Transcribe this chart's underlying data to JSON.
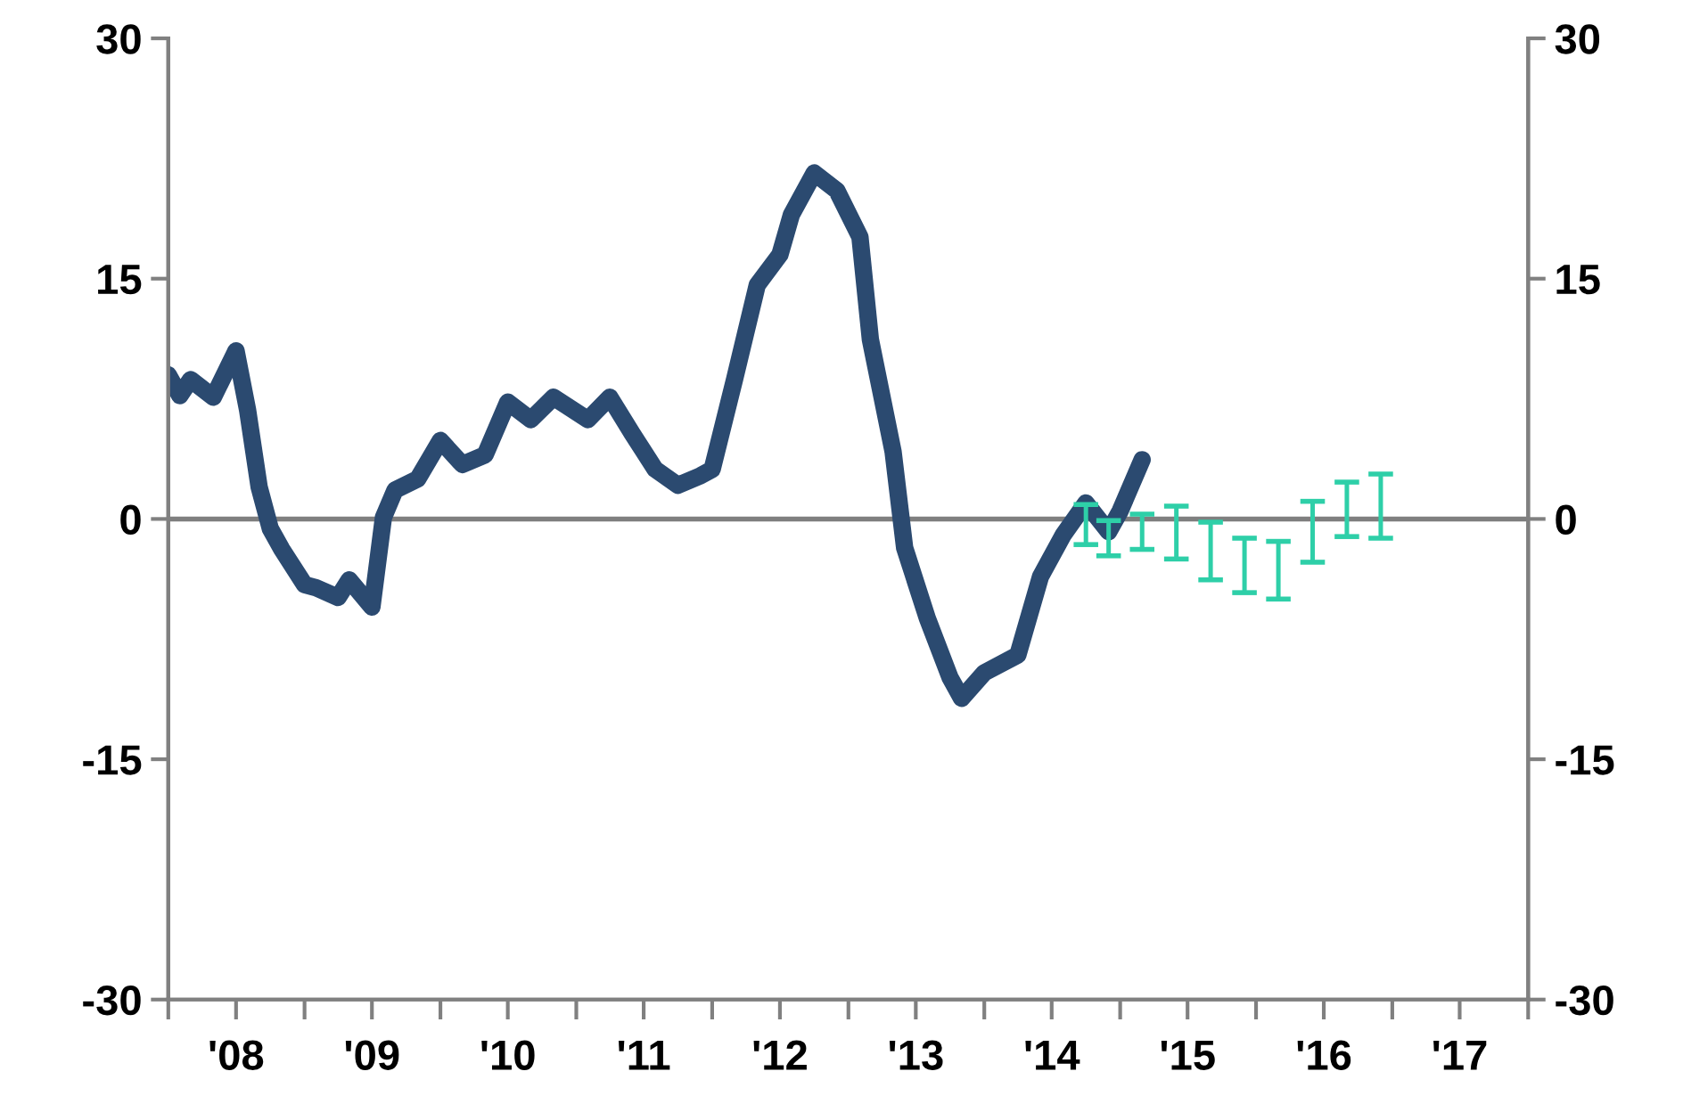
{
  "chart_data": {
    "type": "line",
    "xlim": [
      "2008-01",
      "2018-01"
    ],
    "xticks": [
      {
        "value": "2008-01",
        "label": null
      },
      {
        "value": "2008-07",
        "label": "'08"
      },
      {
        "value": "2009-01",
        "label": null
      },
      {
        "value": "2009-07",
        "label": "'09"
      },
      {
        "value": "2010-01",
        "label": null
      },
      {
        "value": "2010-07",
        "label": "'10"
      },
      {
        "value": "2011-01",
        "label": null
      },
      {
        "value": "2011-07",
        "label": "'11"
      },
      {
        "value": "2012-01",
        "label": null
      },
      {
        "value": "2012-07",
        "label": "'12"
      },
      {
        "value": "2013-01",
        "label": null
      },
      {
        "value": "2013-07",
        "label": "'13"
      },
      {
        "value": "2014-01",
        "label": null
      },
      {
        "value": "2014-07",
        "label": "'14"
      },
      {
        "value": "2015-01",
        "label": null
      },
      {
        "value": "2015-07",
        "label": "'15"
      },
      {
        "value": "2016-01",
        "label": null
      },
      {
        "value": "2016-07",
        "label": "'16"
      },
      {
        "value": "2017-01",
        "label": null
      },
      {
        "value": "2017-07",
        "label": "'17"
      },
      {
        "value": "2018-01",
        "label": null
      }
    ],
    "ylim": [
      -30,
      30
    ],
    "yticks": [
      -30,
      -15,
      0,
      15,
      30
    ],
    "y2lim": [
      -30,
      30
    ],
    "y2ticks": [
      -30,
      -15,
      0,
      15,
      30
    ],
    "grid": false,
    "legend": false,
    "marker": "none",
    "line_style": "solid",
    "ref_lines": [
      {
        "axis": "y",
        "value": 0,
        "color": "#7f7f7f"
      }
    ],
    "series": [
      {
        "color": "#2b4a70",
        "x": [
          "2008-01",
          "2008-02",
          "2008-03",
          "2008-05",
          "2008-07",
          "2008-08",
          "2008-09",
          "2008-10",
          "2008-11",
          "2009-01",
          "2009-02",
          "2009-04",
          "2009-05",
          "2009-07",
          "2009-08",
          "2009-09",
          "2009-11",
          "2010-01",
          "2010-03",
          "2010-05",
          "2010-07",
          "2010-09",
          "2010-11",
          "2011-02",
          "2011-04",
          "2011-06",
          "2011-08",
          "2011-10",
          "2011-12",
          "2012-01",
          "2012-03",
          "2012-05",
          "2012-07",
          "2012-08",
          "2012-10",
          "2012-12",
          "2013-02",
          "2013-03",
          "2013-05",
          "2013-06",
          "2013-08",
          "2013-10",
          "2013-11",
          "2014-01",
          "2014-04",
          "2014-06",
          "2014-08",
          "2014-10",
          "2014-12",
          "2015-01",
          "2015-03"
        ],
        "values": [
          9.0,
          7.7,
          8.7,
          7.6,
          10.5,
          6.8,
          2.0,
          -0.6,
          -1.9,
          -4.1,
          -4.3,
          -4.9,
          -3.8,
          -5.5,
          0.1,
          1.8,
          2.5,
          4.9,
          3.4,
          4.0,
          7.3,
          6.2,
          7.6,
          6.2,
          7.6,
          5.3,
          3.1,
          2.1,
          2.7,
          3.1,
          8.7,
          14.6,
          16.5,
          19.0,
          21.6,
          20.5,
          17.6,
          11.2,
          4.2,
          -1.8,
          -6.2,
          -9.9,
          -11.2,
          -9.6,
          -8.5,
          -3.6,
          -1.0,
          1.0,
          -0.8,
          0.5,
          3.7
        ]
      },
      {
        "type": "bar",
        "color": "#2ecfa8",
        "x": [
          "2014-10",
          "2014-12",
          "2015-03",
          "2015-06",
          "2015-09",
          "2015-12",
          "2016-03",
          "2016-06",
          "2016-09",
          "2016-12"
        ],
        "base": [
          -1.6,
          -2.3,
          -1.9,
          -2.5,
          -3.8,
          -4.6,
          -5.0,
          -2.7,
          -1.1,
          -1.2
        ],
        "values": [
          2.5,
          2.2,
          2.2,
          3.3,
          3.6,
          3.4,
          3.6,
          3.8,
          3.4,
          4.0
        ]
      }
    ]
  }
}
